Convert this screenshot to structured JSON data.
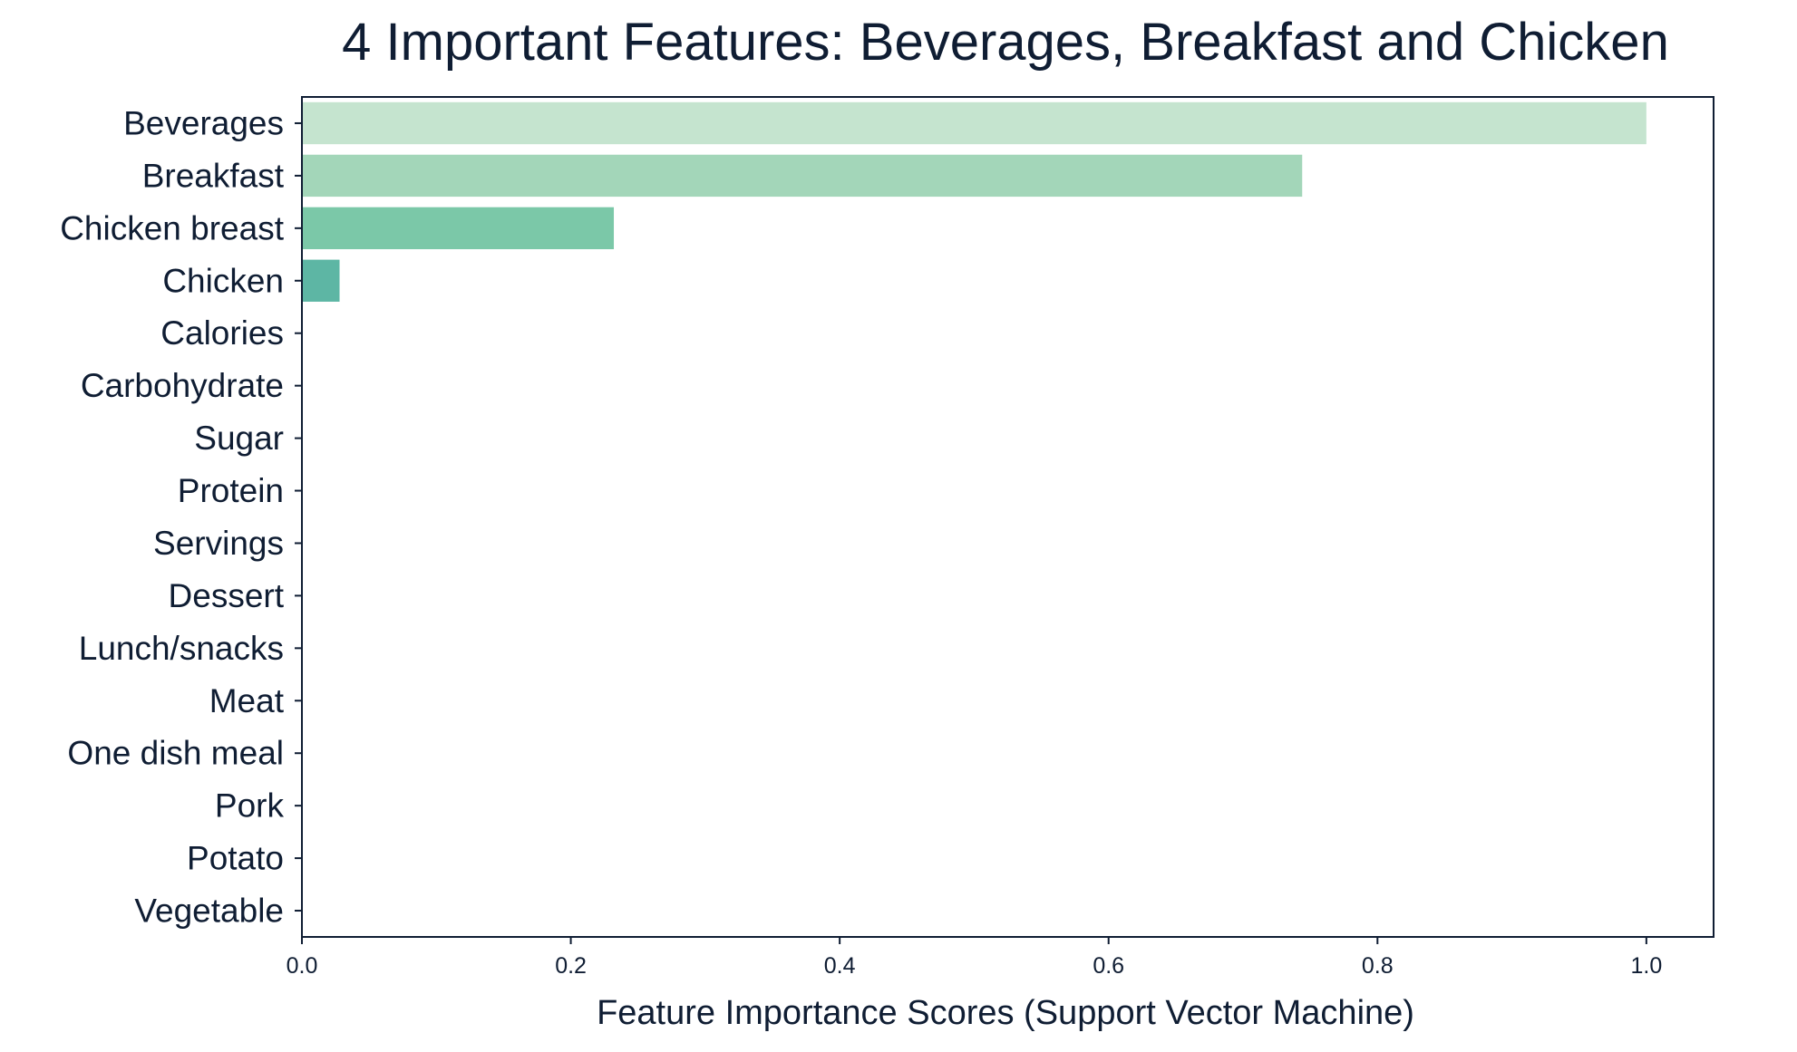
{
  "chart_data": {
    "type": "bar",
    "orientation": "horizontal",
    "title": "4 Important Features: Beverages, Breakfast and Chicken",
    "xlabel": "Feature Importance Scores (Support Vector Machine)",
    "ylabel": "",
    "xlim": [
      0,
      1.05
    ],
    "x_ticks": [
      "0.0",
      "0.2",
      "0.4",
      "0.6",
      "0.8",
      "1.0"
    ],
    "x_tick_values": [
      0,
      0.2,
      0.4,
      0.6,
      0.8,
      1.0
    ],
    "grid": false,
    "categories": [
      "Beverages",
      "Breakfast",
      "Chicken breast",
      "Chicken",
      "Calories",
      "Carbohydrate",
      "Sugar",
      "Protein",
      "Servings",
      "Dessert",
      "Lunch/snacks",
      "Meat",
      "One dish meal",
      "Pork",
      "Potato",
      "Vegetable"
    ],
    "values": [
      1.0,
      0.744,
      0.232,
      0.028,
      0,
      0,
      0,
      0,
      0,
      0,
      0,
      0,
      0,
      0,
      0,
      0
    ],
    "bar_colors": [
      "#c5e4cf",
      "#a3d6b9",
      "#7bc8a8",
      "#5db6a4",
      "#4aa3a2",
      "#3f8f9f",
      "#357b98",
      "#2e6690",
      "#2a5386",
      "#26407a",
      "#22306b",
      "#1f255c",
      "#1c1c4d",
      "#19163f",
      "#151231",
      "#110e24"
    ],
    "axis_color": "#0f1d33"
  }
}
